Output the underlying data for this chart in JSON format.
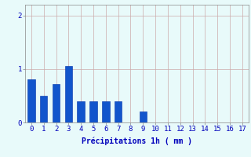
{
  "categories": [
    0,
    1,
    2,
    3,
    4,
    5,
    6,
    7,
    8,
    9,
    10,
    11,
    12,
    13,
    14,
    15,
    16,
    17
  ],
  "values": [
    0.8,
    0.5,
    0.72,
    1.05,
    0.4,
    0.4,
    0.4,
    0.4,
    0.0,
    0.2,
    0.0,
    0.0,
    0.0,
    0.0,
    0.0,
    0.0,
    0.0,
    0.0
  ],
  "bar_color": "#1155cc",
  "bar_edge_color": "#0033aa",
  "background_color": "#e8fafa",
  "grid_color": "#ccaaaa",
  "text_color": "#0000bb",
  "xlabel": "Précipitations 1h ( mm )",
  "ylim": [
    0,
    2.2
  ],
  "yticks": [
    0,
    1,
    2
  ],
  "axis_fontsize": 7,
  "tick_fontsize": 6.5
}
